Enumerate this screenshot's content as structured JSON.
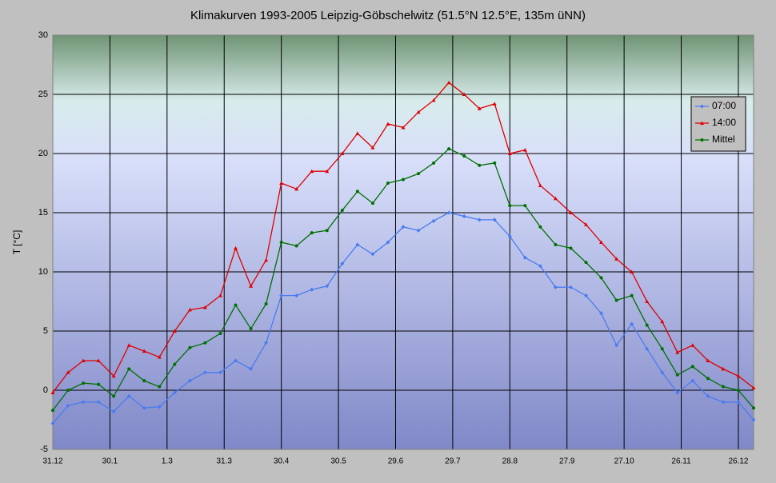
{
  "chart_data": {
    "type": "line",
    "title": "Klimakurven 1993-2005 Leipzig-Göbschelwitz (51.5°N 12.5°E, 135m üNN)",
    "y_label": "T [°C]",
    "x": [
      0,
      8,
      16,
      24,
      32,
      40,
      48,
      56,
      64,
      72,
      80,
      88,
      96,
      104,
      112,
      120,
      128,
      136,
      144,
      152,
      160,
      168,
      176,
      184,
      192,
      200,
      208,
      216,
      224,
      232,
      240,
      248,
      256,
      264,
      272,
      280,
      288,
      296,
      304,
      312,
      320,
      328,
      336,
      344,
      352,
      360,
      368
    ],
    "series": [
      {
        "name": "07:00",
        "color": "#4a7cf0",
        "marker": "diamond",
        "values": [
          -2.8,
          -1.3,
          -1.0,
          -1.0,
          -1.8,
          -0.5,
          -1.5,
          -1.4,
          -0.2,
          0.8,
          1.5,
          1.5,
          2.5,
          1.8,
          4.0,
          8.0,
          8.0,
          8.5,
          8.8,
          10.7,
          12.3,
          11.5,
          12.5,
          13.8,
          13.5,
          14.3,
          15.0,
          14.7,
          14.4,
          14.4,
          13.0,
          11.2,
          10.5,
          8.7,
          8.7,
          8.0,
          6.5,
          3.8,
          5.6,
          3.5,
          1.5,
          -0.2,
          0.8,
          -0.5,
          -1.0,
          -1.0,
          -2.5
        ]
      },
      {
        "name": "14:00",
        "color": "#e00000",
        "marker": "triangle",
        "values": [
          -0.2,
          1.5,
          2.5,
          2.5,
          1.2,
          3.8,
          3.3,
          2.8,
          5.0,
          6.8,
          7.0,
          8.0,
          12.0,
          8.8,
          11.0,
          17.5,
          17.0,
          18.5,
          18.5,
          20.0,
          21.7,
          20.5,
          22.5,
          22.2,
          23.5,
          24.5,
          26.0,
          25.0,
          23.8,
          24.2,
          20.0,
          20.3,
          17.3,
          16.2,
          15.0,
          14.0,
          12.5,
          11.1,
          10.0,
          7.5,
          5.8,
          3.2,
          3.8,
          2.5,
          1.8,
          1.2,
          0.2
        ]
      },
      {
        "name": "Mittel",
        "color": "#007000",
        "marker": "dot",
        "values": [
          -1.7,
          0.0,
          0.6,
          0.5,
          -0.5,
          1.8,
          0.8,
          0.3,
          2.2,
          3.6,
          4.0,
          4.8,
          7.2,
          5.2,
          7.3,
          12.5,
          12.2,
          13.3,
          13.5,
          15.2,
          16.8,
          15.8,
          17.5,
          17.8,
          18.3,
          19.2,
          20.4,
          19.8,
          19.0,
          19.2,
          15.6,
          15.6,
          13.8,
          12.3,
          12.0,
          10.8,
          9.5,
          7.6,
          8.0,
          5.5,
          3.5,
          1.3,
          2.0,
          1.0,
          0.3,
          0.0,
          -1.5
        ]
      }
    ],
    "xlim": [
      0,
      368
    ],
    "xticks": [
      {
        "value": 0,
        "label": "31.12"
      },
      {
        "value": 30,
        "label": "30.1"
      },
      {
        "value": 60,
        "label": "1.3"
      },
      {
        "value": 90,
        "label": "31.3"
      },
      {
        "value": 120,
        "label": "30.4"
      },
      {
        "value": 150,
        "label": "30.5"
      },
      {
        "value": 180,
        "label": "29.6"
      },
      {
        "value": 210,
        "label": "29.7"
      },
      {
        "value": 240,
        "label": "28.8"
      },
      {
        "value": 270,
        "label": "27.9"
      },
      {
        "value": 300,
        "label": "27.10"
      },
      {
        "value": 330,
        "label": "26.11"
      },
      {
        "value": 360,
        "label": "26.12"
      }
    ],
    "ylim": [
      -5,
      30
    ],
    "yticks": [
      -5,
      0,
      5,
      10,
      15,
      20,
      25,
      30
    ],
    "grid": true,
    "legend": "upper right"
  }
}
